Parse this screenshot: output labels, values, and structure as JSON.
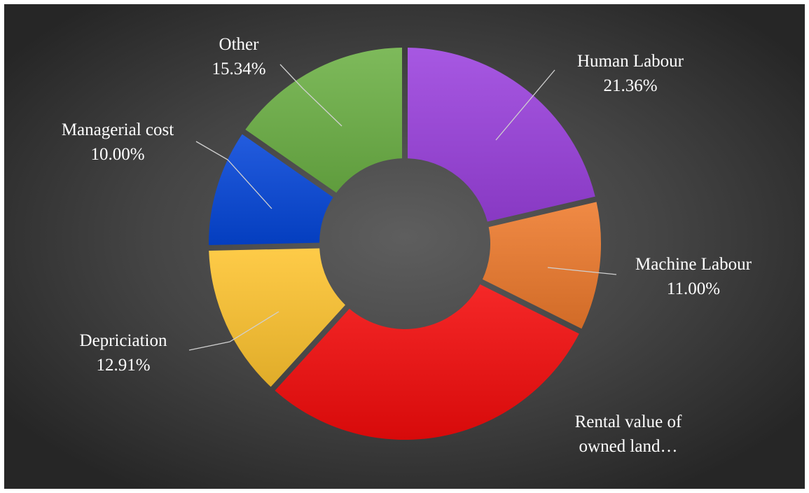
{
  "chart_data": {
    "type": "pie",
    "variant": "doughnut-exploded",
    "start_angle_deg": 0,
    "direction": "clockwise",
    "slices": [
      {
        "name": "Human Labour",
        "label_line1": "Human Labour",
        "label_line2": "21.36%",
        "value": 21.36,
        "color": "#9b41de"
      },
      {
        "name": "Machine Labour",
        "label_line1": "Machine Labour",
        "label_line2": "11.00%",
        "value": 11.0,
        "color": "#ee7a2c"
      },
      {
        "name": "Rental value of owned land…",
        "label_line1": "Rental value of",
        "label_line2": "owned land…",
        "value": 29.39,
        "color": "#f40b0b"
      },
      {
        "name": "Depriciation",
        "label_line1": "Depriciation",
        "label_line2": "12.91%",
        "value": 12.91,
        "color": "#fec42f"
      },
      {
        "name": "Managerial cost",
        "label_line1": "Managerial cost",
        "label_line2": "10.00%",
        "value": 10.0,
        "color": "#0546d9"
      },
      {
        "name": "Other",
        "label_line1": "Other",
        "label_line2": "15.34%",
        "value": 15.34,
        "color": "#6cb145"
      }
    ],
    "legend": "none",
    "data_labels": "outside with leader lines"
  }
}
